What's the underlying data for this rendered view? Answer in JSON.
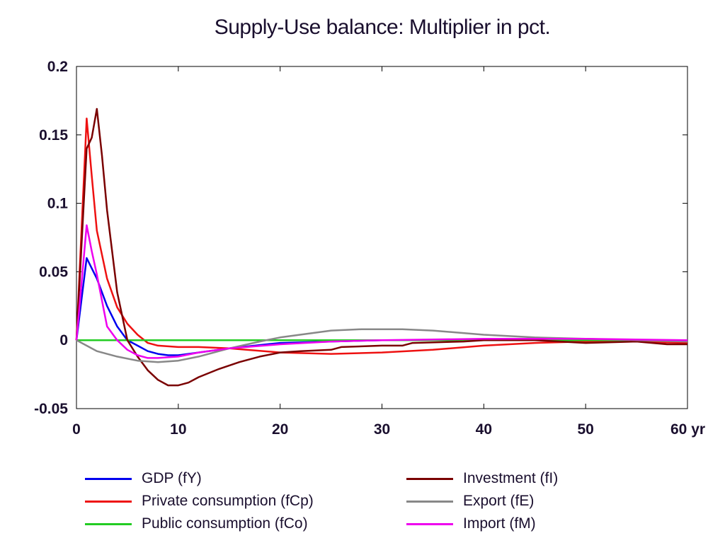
{
  "chart_data": {
    "type": "line",
    "title": "Supply-Use balance: Multiplier in pct.",
    "xlabel": "",
    "ylabel": "",
    "xlim": [
      0,
      60
    ],
    "ylim": [
      -0.05,
      0.2
    ],
    "x_ticks": [
      0,
      10,
      20,
      30,
      40,
      50,
      60
    ],
    "x_tick_labels": [
      "0",
      "10",
      "20",
      "30",
      "40",
      "50",
      "60 yr"
    ],
    "y_ticks": [
      0.2,
      0.15,
      0.1,
      0.05,
      0,
      -0.05
    ],
    "y_tick_labels": [
      "0.2",
      "0.15",
      "0.1",
      "0.05",
      "0",
      "-0.05"
    ],
    "grid": false,
    "legend_position": "bottom",
    "series": [
      {
        "name": "GDP (fY)",
        "color": "#0000ee",
        "points": [
          [
            0,
            0
          ],
          [
            1,
            0.06
          ],
          [
            2,
            0.045
          ],
          [
            3,
            0.025
          ],
          [
            4,
            0.01
          ],
          [
            5,
            0.0
          ],
          [
            6,
            -0.004
          ],
          [
            7,
            -0.008
          ],
          [
            8,
            -0.01
          ],
          [
            9,
            -0.011
          ],
          [
            10,
            -0.011
          ],
          [
            12,
            -0.009
          ],
          [
            15,
            -0.006
          ],
          [
            20,
            -0.002
          ],
          [
            25,
            -0.001
          ],
          [
            30,
            0.0
          ],
          [
            40,
            0.0
          ],
          [
            50,
            0.0
          ],
          [
            60,
            -0.001
          ]
        ]
      },
      {
        "name": "Private consumption (fCp)",
        "color": "#ee1111",
        "points": [
          [
            0,
            0
          ],
          [
            1,
            0.162
          ],
          [
            1.5,
            0.12
          ],
          [
            2,
            0.08
          ],
          [
            3,
            0.045
          ],
          [
            4,
            0.024
          ],
          [
            5,
            0.012
          ],
          [
            6,
            0.004
          ],
          [
            7,
            -0.002
          ],
          [
            8,
            -0.004
          ],
          [
            10,
            -0.005
          ],
          [
            12,
            -0.005
          ],
          [
            15,
            -0.006
          ],
          [
            20,
            -0.009
          ],
          [
            25,
            -0.01
          ],
          [
            30,
            -0.009
          ],
          [
            35,
            -0.007
          ],
          [
            40,
            -0.004
          ],
          [
            45,
            -0.002
          ],
          [
            50,
            -0.001
          ],
          [
            55,
            -0.001
          ],
          [
            60,
            -0.002
          ]
        ]
      },
      {
        "name": "Public consumption (fCo)",
        "color": "#22cc22",
        "points": [
          [
            0,
            0
          ],
          [
            60,
            0
          ]
        ]
      },
      {
        "name": "Investment (fI)",
        "color": "#7a0000",
        "points": [
          [
            0,
            0
          ],
          [
            1,
            0.14
          ],
          [
            1.5,
            0.148
          ],
          [
            2,
            0.169
          ],
          [
            2.5,
            0.135
          ],
          [
            3,
            0.095
          ],
          [
            4,
            0.035
          ],
          [
            5,
            0.0
          ],
          [
            6,
            -0.012
          ],
          [
            7,
            -0.022
          ],
          [
            8,
            -0.029
          ],
          [
            9,
            -0.033
          ],
          [
            10,
            -0.033
          ],
          [
            11,
            -0.031
          ],
          [
            12,
            -0.027
          ],
          [
            14,
            -0.021
          ],
          [
            16,
            -0.016
          ],
          [
            18,
            -0.012
          ],
          [
            20,
            -0.009
          ],
          [
            22,
            -0.008
          ],
          [
            25,
            -0.007
          ],
          [
            26,
            -0.005
          ],
          [
            30,
            -0.004
          ],
          [
            32,
            -0.004
          ],
          [
            33,
            -0.002
          ],
          [
            38,
            -0.001
          ],
          [
            40,
            0.0
          ],
          [
            45,
            0.0
          ],
          [
            50,
            -0.002
          ],
          [
            55,
            -0.001
          ],
          [
            58,
            -0.003
          ],
          [
            60,
            -0.003
          ]
        ]
      },
      {
        "name": "Export (fE)",
        "color": "#888888",
        "points": [
          [
            0,
            0
          ],
          [
            2,
            -0.008
          ],
          [
            4,
            -0.012
          ],
          [
            6,
            -0.015
          ],
          [
            8,
            -0.016
          ],
          [
            10,
            -0.015
          ],
          [
            12,
            -0.012
          ],
          [
            15,
            -0.006
          ],
          [
            18,
            -0.001
          ],
          [
            20,
            0.002
          ],
          [
            25,
            0.007
          ],
          [
            28,
            0.008
          ],
          [
            32,
            0.008
          ],
          [
            35,
            0.007
          ],
          [
            40,
            0.004
          ],
          [
            45,
            0.002
          ],
          [
            50,
            0.001
          ],
          [
            55,
            0.0
          ],
          [
            60,
            -0.001
          ]
        ]
      },
      {
        "name": "Import (fM)",
        "color": "#ee00ee",
        "points": [
          [
            0,
            0
          ],
          [
            1,
            0.084
          ],
          [
            1.5,
            0.065
          ],
          [
            2,
            0.048
          ],
          [
            3,
            0.01
          ],
          [
            4,
            0.0
          ],
          [
            5,
            -0.007
          ],
          [
            6,
            -0.011
          ],
          [
            7,
            -0.013
          ],
          [
            8,
            -0.013
          ],
          [
            10,
            -0.012
          ],
          [
            12,
            -0.009
          ],
          [
            15,
            -0.006
          ],
          [
            20,
            -0.003
          ],
          [
            25,
            -0.001
          ],
          [
            30,
            0.0
          ],
          [
            40,
            0.001
          ],
          [
            50,
            0.001
          ],
          [
            60,
            0.0
          ]
        ]
      }
    ]
  }
}
